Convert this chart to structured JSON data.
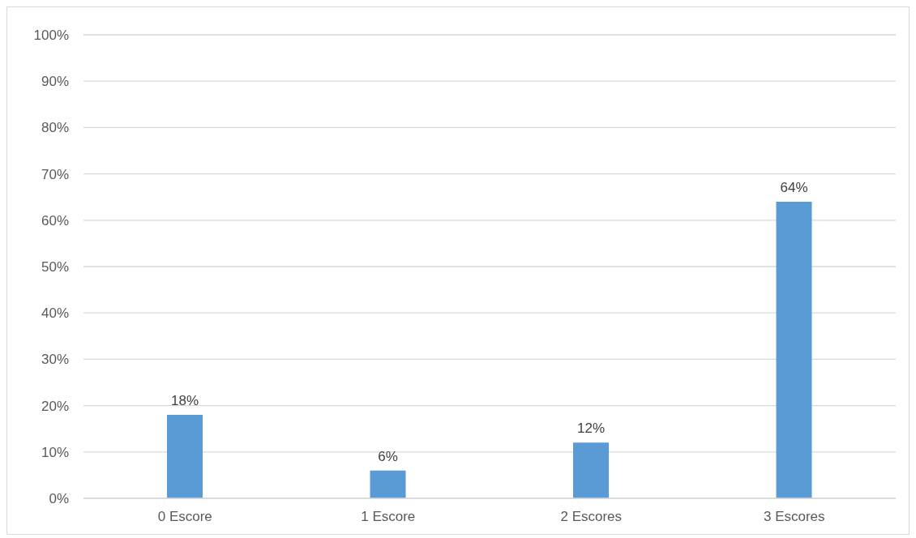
{
  "chart_data": {
    "type": "bar",
    "categories": [
      "0 Escore",
      "1 Escore",
      "2 Escores",
      "3 Escores"
    ],
    "values": [
      18,
      6,
      12,
      64
    ],
    "color": "#5b9bd5",
    "value_labels": [
      "18%",
      "6%",
      "12%",
      "64%"
    ],
    "ylim": [
      0,
      100
    ],
    "yticks": [
      {
        "value": 0,
        "label": "0%"
      },
      {
        "value": 10,
        "label": "10%"
      },
      {
        "value": 20,
        "label": "20%"
      },
      {
        "value": 30,
        "label": "30%"
      },
      {
        "value": 40,
        "label": "40%"
      },
      {
        "value": 50,
        "label": "50%"
      },
      {
        "value": 60,
        "label": "60%"
      },
      {
        "value": 70,
        "label": "70%"
      },
      {
        "value": 80,
        "label": "80%"
      },
      {
        "value": 90,
        "label": "90%"
      },
      {
        "value": 100,
        "label": "100%"
      }
    ],
    "grid": "y"
  }
}
